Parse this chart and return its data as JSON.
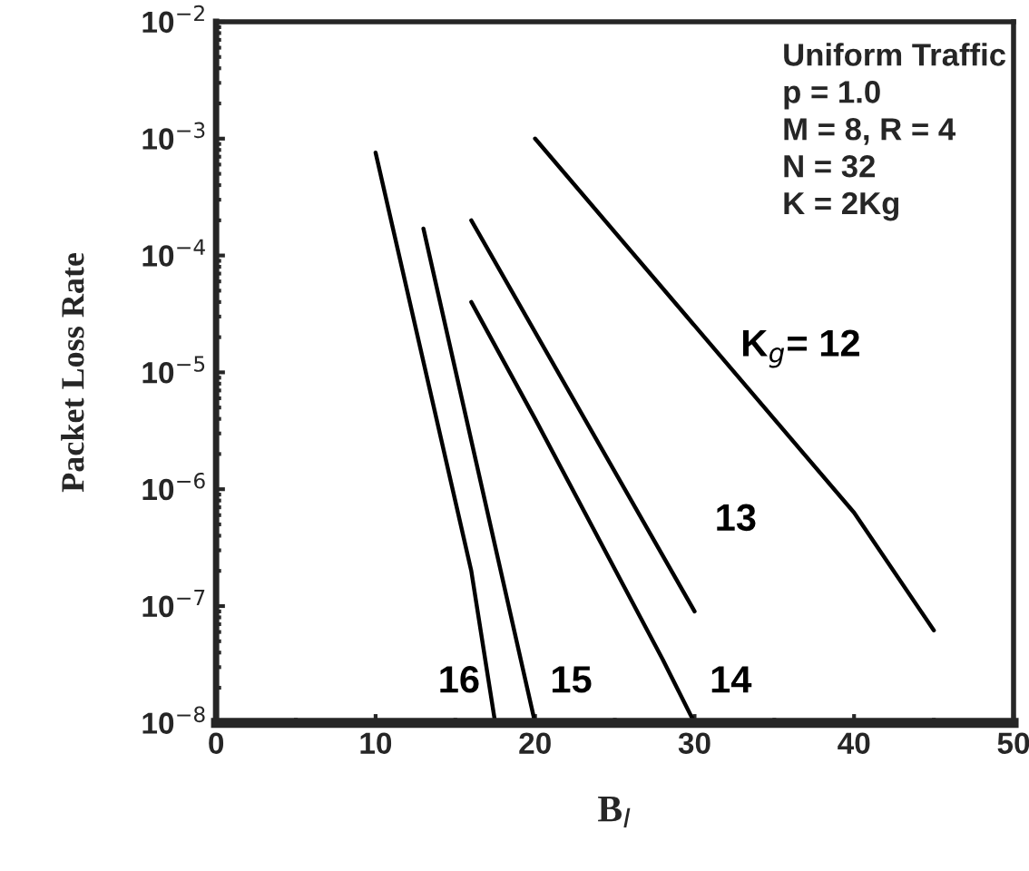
{
  "chart_data": {
    "type": "line",
    "xlabel": "B$_{I}$",
    "ylabel": "Packet Loss Rate",
    "log": "y",
    "series": [
      {
        "name": "K$_{g}$= 12",
        "color": "#000000",
        "x": [
          20,
          40,
          45
        ],
        "values": [
          0.001,
          6.3e-07,
          6.2e-08
        ]
      },
      {
        "name": "13",
        "color": "#000000",
        "x": [
          16,
          30
        ],
        "values": [
          0.0002,
          9e-08
        ]
      },
      {
        "name": "14",
        "color": "#000000",
        "x": [
          16,
          20,
          28,
          30
        ],
        "values": [
          4e-05,
          4e-06,
          3.5e-08,
          1e-08
        ]
      },
      {
        "name": "15",
        "color": "#000000",
        "x": [
          13,
          20
        ],
        "values": [
          0.00017,
          1e-08
        ]
      },
      {
        "name": "16",
        "color": "#000000",
        "x": [
          10,
          16,
          17.5
        ],
        "values": [
          0.00076,
          2e-07,
          1e-08
        ]
      }
    ],
    "xlim": [
      0,
      50
    ],
    "xticks": [
      0,
      10,
      20,
      30,
      40,
      50
    ],
    "ylim": [
      1e-08,
      0.01
    ],
    "yticks": [
      {
        "value": 1e-08,
        "label": "10$^{−8}$"
      },
      {
        "value": 1e-07,
        "label": "10$^{−7}$"
      },
      {
        "value": 1e-06,
        "label": "10$^{−6}$"
      },
      {
        "value": 1e-05,
        "label": "10$^{−5}$"
      },
      {
        "value": 0.0001,
        "label": "10$^{−4}$"
      },
      {
        "value": 0.001,
        "label": "10$^{−3}$"
      },
      {
        "value": 0.01,
        "label": "10$^{−2}$"
      }
    ],
    "grid": false,
    "legend": false,
    "marker": "none",
    "line_style": "solid",
    "annotations": [
      "Uniform Traffic",
      "p = 1.0",
      "M = 8, R = 4",
      "N = 32",
      "K = 2Kg"
    ]
  }
}
